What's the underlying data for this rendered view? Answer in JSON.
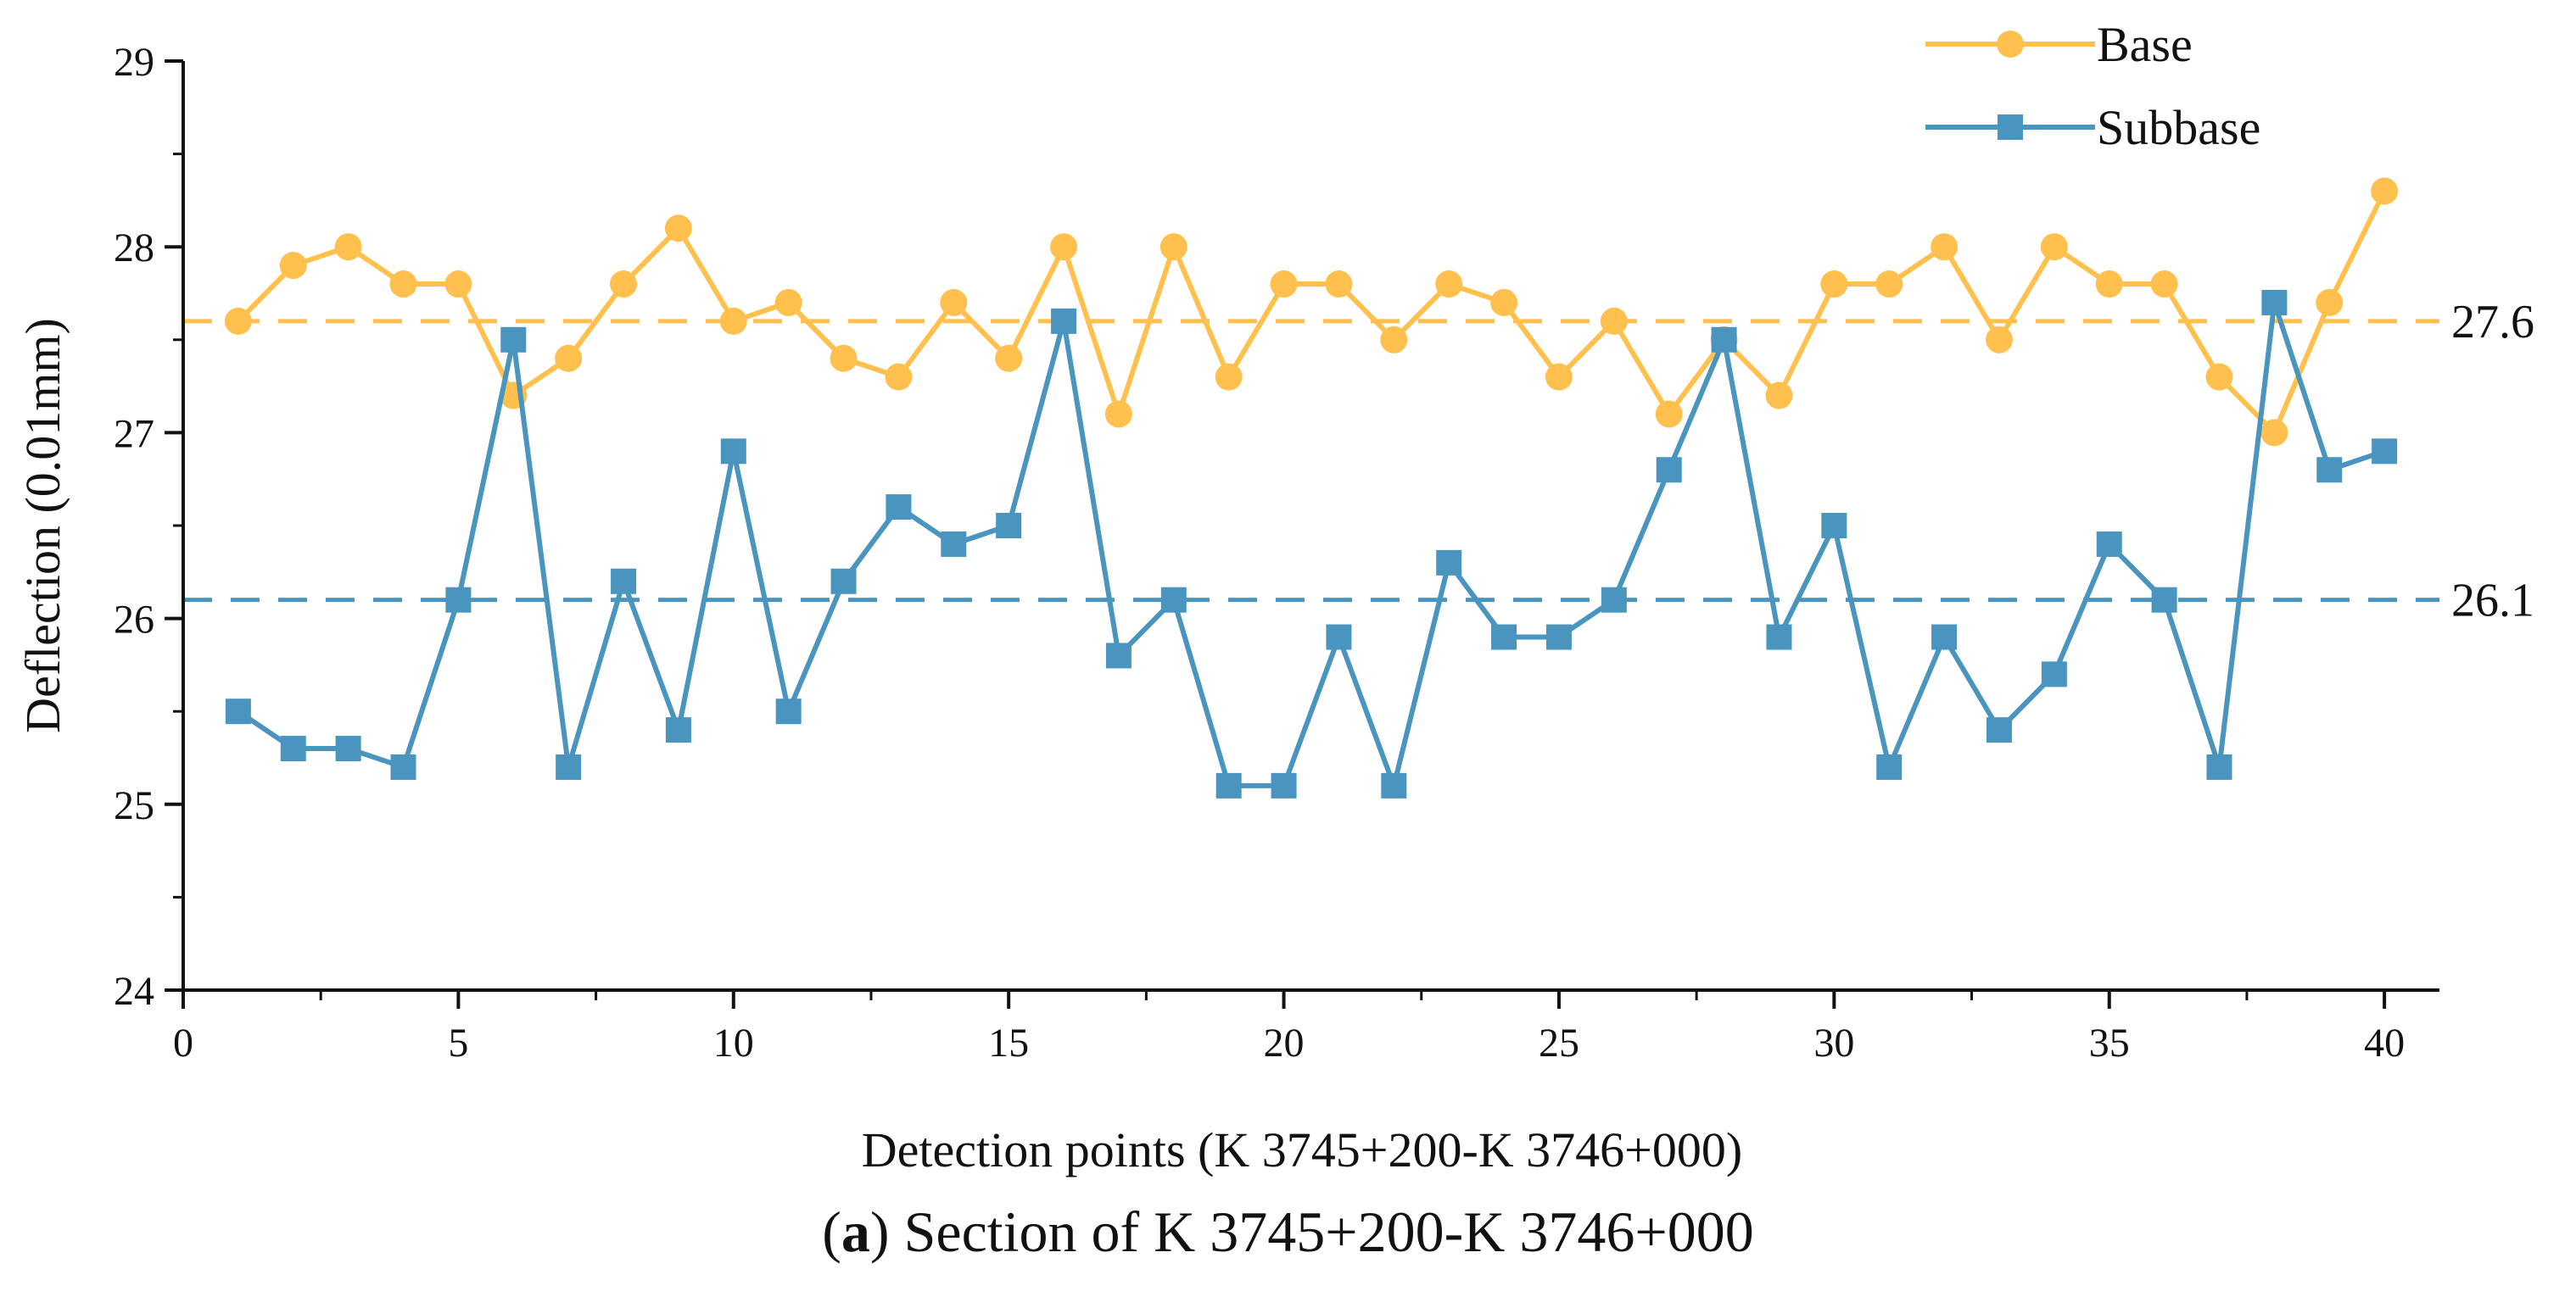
{
  "chart_data": {
    "type": "line",
    "x": [
      1,
      2,
      3,
      4,
      5,
      6,
      7,
      8,
      9,
      10,
      11,
      12,
      13,
      14,
      15,
      16,
      17,
      18,
      19,
      20,
      21,
      22,
      23,
      24,
      25,
      26,
      27,
      28,
      29,
      30,
      31,
      32,
      33,
      34,
      35,
      36,
      37,
      38,
      39,
      40
    ],
    "series": [
      {
        "name": "Base",
        "color": "#FFC04D",
        "marker": "circle",
        "values": [
          27.6,
          27.9,
          28.0,
          27.8,
          27.8,
          27.2,
          27.4,
          27.8,
          28.1,
          27.6,
          27.7,
          27.4,
          27.3,
          27.7,
          27.4,
          28.0,
          27.1,
          28.0,
          27.3,
          27.8,
          27.8,
          27.5,
          27.8,
          27.7,
          27.3,
          27.6,
          27.1,
          27.5,
          27.2,
          27.8,
          27.8,
          28.0,
          27.5,
          28.0,
          27.8,
          27.8,
          27.3,
          27.0,
          27.7,
          28.3
        ]
      },
      {
        "name": "Subbase",
        "color": "#4A95C0",
        "marker": "square",
        "values": [
          25.5,
          25.3,
          25.3,
          25.2,
          26.1,
          27.5,
          25.2,
          26.2,
          25.4,
          26.9,
          25.5,
          26.2,
          26.6,
          26.4,
          26.5,
          27.6,
          25.8,
          26.1,
          25.1,
          25.1,
          25.9,
          25.1,
          26.3,
          25.9,
          25.9,
          26.1,
          26.8,
          27.5,
          25.9,
          26.5,
          25.2,
          25.9,
          25.4,
          25.7,
          26.4,
          26.1,
          25.2,
          27.7,
          26.8,
          26.9
        ]
      }
    ],
    "reference_lines": [
      {
        "value": 27.6,
        "label": "27.6",
        "color": "#FFC04D"
      },
      {
        "value": 26.1,
        "label": "26.1",
        "color": "#4A95C0"
      }
    ],
    "xlim": [
      0,
      41
    ],
    "ylim": [
      24,
      29
    ],
    "xticks": [
      0,
      5,
      10,
      15,
      20,
      25,
      30,
      35,
      40
    ],
    "xtick_labels": [
      "0",
      "5",
      "10",
      "15",
      "20",
      "25",
      "30",
      "35",
      "40"
    ],
    "yticks": [
      24,
      25,
      26,
      27,
      28,
      29
    ],
    "ytick_labels": [
      "24",
      "25",
      "26",
      "27",
      "28",
      "29"
    ],
    "xlabel": "Detection points (K 3745+200-K 3746+000)",
    "ylabel": "Deflection (0.01mm)",
    "legend_position": "top-right",
    "grid": false
  },
  "caption": {
    "letter": "a",
    "open": "(",
    "close": ")",
    "text": " Section of K 3745+200-K 3746+000"
  }
}
